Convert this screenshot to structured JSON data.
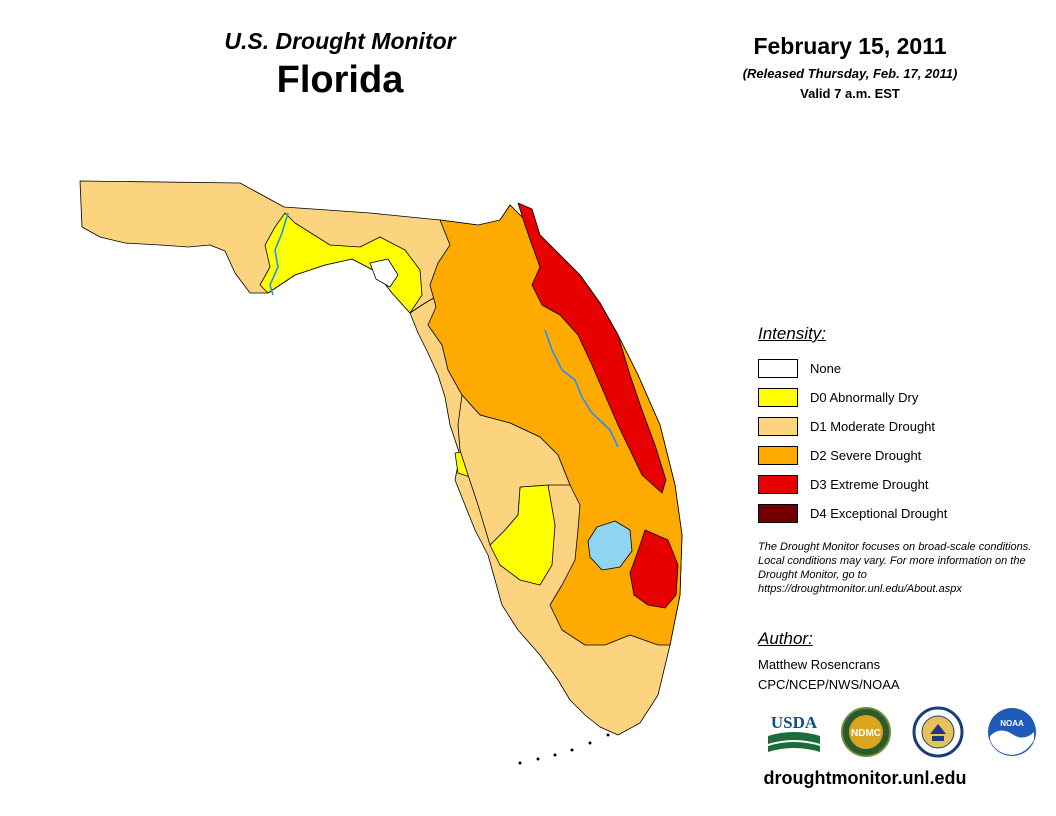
{
  "header": {
    "monitor_title": "U.S. Drought Monitor",
    "state_title": "Florida",
    "date": "February 15, 2011",
    "released": "(Released Thursday, Feb. 17, 2011)",
    "valid": "Valid 7 a.m. EST"
  },
  "legend": {
    "heading": "Intensity:",
    "items": [
      {
        "label": "None",
        "color": "#ffffff"
      },
      {
        "label": "D0 Abnormally Dry",
        "color": "#ffff00"
      },
      {
        "label": "D1 Moderate Drought",
        "color": "#fcd37f"
      },
      {
        "label": "D2 Severe Drought",
        "color": "#ffaa00"
      },
      {
        "label": "D3 Extreme Drought",
        "color": "#e60000"
      },
      {
        "label": "D4 Exceptional Drought",
        "color": "#730000"
      }
    ]
  },
  "map": {
    "water_color": "#8fd4f0",
    "river_color": "#1e90ff"
  },
  "note": "The Drought Monitor focuses on broad-scale conditions. Local conditions may vary. For more information on the Drought Monitor, go to https://droughtmonitor.unl.edu/About.aspx",
  "author": {
    "heading": "Author:",
    "name": "Matthew Rosencrans",
    "org": "CPC/NCEP/NWS/NOAA"
  },
  "logos": {
    "usda": "USDA",
    "ndmc": "NDMC",
    "noaa": "NOAA"
  },
  "website": "droughtmonitor.unl.edu"
}
